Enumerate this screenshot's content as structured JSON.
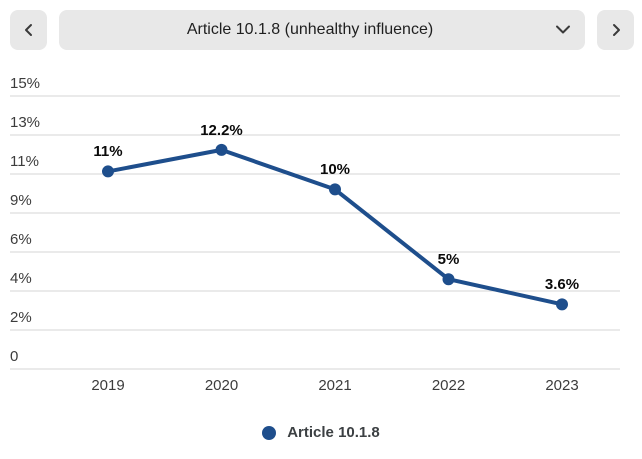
{
  "navigator": {
    "selected_article": "Article 10.1.8 (unhealthy influence)",
    "prev_icon": "chevron-left",
    "next_icon": "chevron-right"
  },
  "legend": {
    "label": "Article 10.1.8"
  },
  "colors": {
    "series": "#1e4e8c",
    "grid": "#d6d6d6",
    "control_bg": "#e8e8e8",
    "axis_text": "#3c3c3c",
    "data_label_text": "#0a0a0a"
  },
  "chart_data": {
    "type": "line",
    "title": "",
    "xlabel": "",
    "ylabel": "",
    "categories": [
      "2019",
      "2020",
      "2021",
      "2022",
      "2023"
    ],
    "series": [
      {
        "name": "Article 10.1.8",
        "values": [
          11,
          12.2,
          10,
          5,
          3.6
        ]
      }
    ],
    "point_labels": [
      "11%",
      "12.2%",
      "10%",
      "5%",
      "3.6%"
    ],
    "y_tick_labels": [
      "15%",
      "13%",
      "11%",
      "9%",
      "6%",
      "4%",
      "2%",
      "0"
    ],
    "ylim": [
      0,
      15.2
    ],
    "grid": true,
    "legend_position": "bottom"
  }
}
